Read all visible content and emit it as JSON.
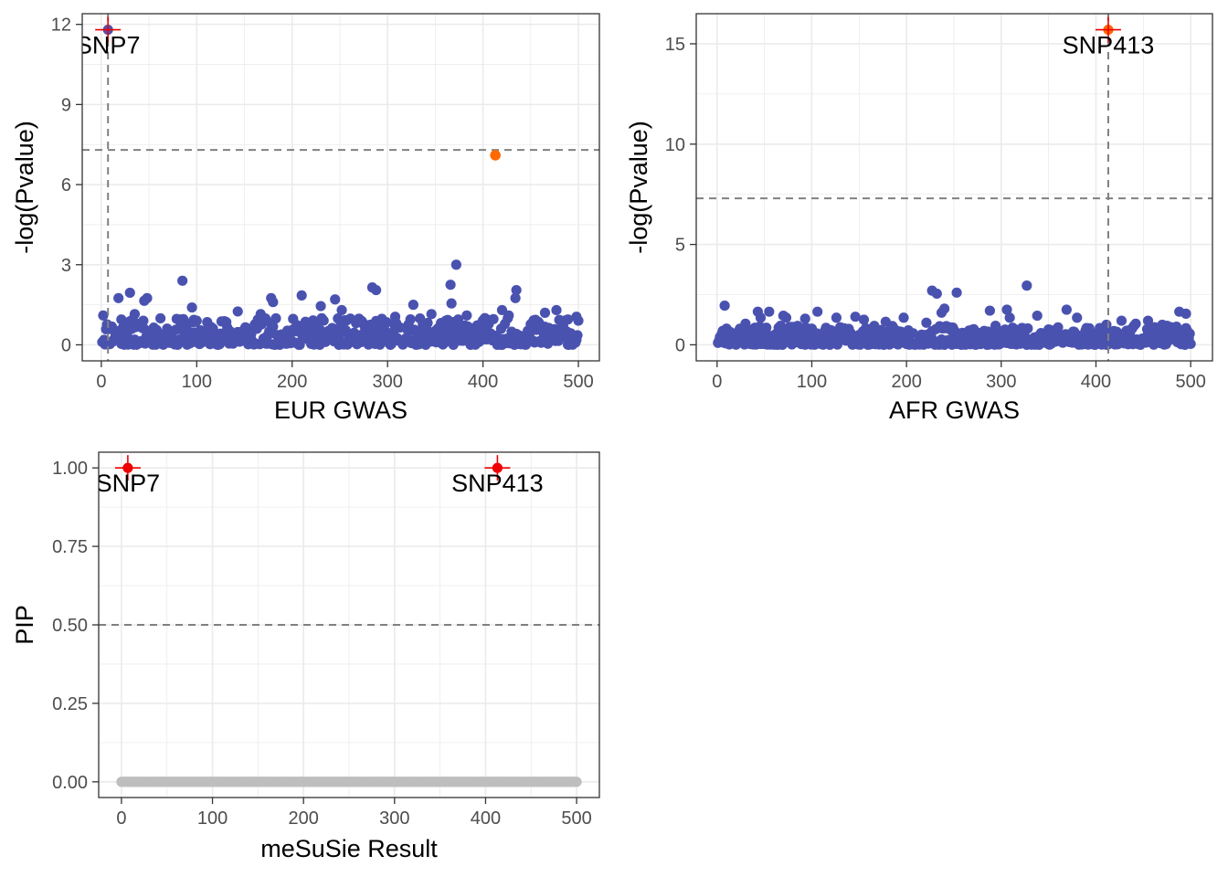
{
  "colors": {
    "point": "#4a52b0",
    "highlight": "#ff6a00",
    "cross": "#ee0000",
    "zero_pip": "#bebebe",
    "reference": "#808080",
    "grid": "#ebebeb"
  },
  "chart_data": [
    {
      "type": "scatter",
      "title": "",
      "xlabel": "EUR GWAS",
      "ylabel": "-log(Pvalue)",
      "xlim": [
        -20,
        522
      ],
      "ylim": [
        -0.6,
        12.4
      ],
      "x_ticks": [
        0,
        100,
        200,
        300,
        400,
        500
      ],
      "x_tick_labels": [
        "0",
        "100",
        "200",
        "300",
        "400",
        "500"
      ],
      "y_ticks": [
        0,
        3,
        6,
        9,
        12
      ],
      "y_tick_labels": [
        "0",
        "3",
        "6",
        "9",
        "12"
      ],
      "hline": 7.3,
      "vline": 7,
      "grid": true,
      "notable_points": [
        {
          "x": 7,
          "y": 11.8,
          "label": "SNP7",
          "marker": "cross",
          "color": "point"
        },
        {
          "x": 413,
          "y": 7.1,
          "label": "",
          "marker": "dot",
          "color": "highlight"
        }
      ],
      "outliers": [
        {
          "x": 2,
          "y": 1.1
        },
        {
          "x": 18,
          "y": 1.75
        },
        {
          "x": 21,
          "y": 0.95
        },
        {
          "x": 30,
          "y": 1.95
        },
        {
          "x": 35,
          "y": 1.15
        },
        {
          "x": 45,
          "y": 1.65
        },
        {
          "x": 48,
          "y": 1.75
        },
        {
          "x": 83,
          "y": 0.95
        },
        {
          "x": 85,
          "y": 2.4
        },
        {
          "x": 95,
          "y": 1.4
        },
        {
          "x": 100,
          "y": 0.9
        },
        {
          "x": 143,
          "y": 1.25
        },
        {
          "x": 167,
          "y": 1.15
        },
        {
          "x": 178,
          "y": 1.75
        },
        {
          "x": 180,
          "y": 1.6
        },
        {
          "x": 210,
          "y": 1.85
        },
        {
          "x": 230,
          "y": 1.45
        },
        {
          "x": 245,
          "y": 1.7
        },
        {
          "x": 252,
          "y": 1.3
        },
        {
          "x": 284,
          "y": 2.15
        },
        {
          "x": 288,
          "y": 2.05
        },
        {
          "x": 308,
          "y": 1.05
        },
        {
          "x": 327,
          "y": 1.5
        },
        {
          "x": 346,
          "y": 1.15
        },
        {
          "x": 366,
          "y": 2.25
        },
        {
          "x": 367,
          "y": 1.55
        },
        {
          "x": 372,
          "y": 3.0
        },
        {
          "x": 383,
          "y": 1.1
        },
        {
          "x": 402,
          "y": 1.0
        },
        {
          "x": 420,
          "y": 1.3
        },
        {
          "x": 427,
          "y": 1.1
        },
        {
          "x": 434,
          "y": 1.75
        },
        {
          "x": 435,
          "y": 2.05
        },
        {
          "x": 455,
          "y": 0.9
        },
        {
          "x": 465,
          "y": 1.2
        },
        {
          "x": 477,
          "y": 1.3
        },
        {
          "x": 489,
          "y": 0.95
        },
        {
          "x": 498,
          "y": 1.05
        }
      ],
      "background_points": {
        "x_range": [
          1,
          500
        ],
        "count": 500,
        "y_max": 1.0,
        "seed": 11
      }
    },
    {
      "type": "scatter",
      "title": "",
      "xlabel": "AFR GWAS",
      "ylabel": "-log(Pvalue)",
      "xlim": [
        -22,
        523
      ],
      "ylim": [
        -0.8,
        16.5
      ],
      "x_ticks": [
        0,
        100,
        200,
        300,
        400,
        500
      ],
      "x_tick_labels": [
        "0",
        "100",
        "200",
        "300",
        "400",
        "500"
      ],
      "y_ticks": [
        0,
        5,
        10,
        15
      ],
      "y_tick_labels": [
        "0",
        "5",
        "10",
        "15"
      ],
      "hline": 7.3,
      "vline": 413,
      "grid": true,
      "notable_points": [
        {
          "x": 413,
          "y": 15.7,
          "label": "SNP413",
          "marker": "cross",
          "color": "highlight"
        }
      ],
      "outliers": [
        {
          "x": 8,
          "y": 1.95
        },
        {
          "x": 30,
          "y": 1.05
        },
        {
          "x": 43,
          "y": 1.65
        },
        {
          "x": 46,
          "y": 1.35
        },
        {
          "x": 55,
          "y": 1.65
        },
        {
          "x": 70,
          "y": 1.45
        },
        {
          "x": 73,
          "y": 1.35
        },
        {
          "x": 93,
          "y": 1.3
        },
        {
          "x": 106,
          "y": 1.65
        },
        {
          "x": 126,
          "y": 1.35
        },
        {
          "x": 146,
          "y": 1.4
        },
        {
          "x": 155,
          "y": 1.25
        },
        {
          "x": 178,
          "y": 1.15
        },
        {
          "x": 197,
          "y": 1.35
        },
        {
          "x": 221,
          "y": 1.1
        },
        {
          "x": 227,
          "y": 2.7
        },
        {
          "x": 232,
          "y": 2.55
        },
        {
          "x": 237,
          "y": 1.6
        },
        {
          "x": 240,
          "y": 1.8
        },
        {
          "x": 253,
          "y": 2.6
        },
        {
          "x": 288,
          "y": 1.7
        },
        {
          "x": 306,
          "y": 1.75
        },
        {
          "x": 309,
          "y": 1.35
        },
        {
          "x": 327,
          "y": 2.95
        },
        {
          "x": 338,
          "y": 1.45
        },
        {
          "x": 369,
          "y": 1.75
        },
        {
          "x": 380,
          "y": 1.35
        },
        {
          "x": 411,
          "y": 1.0
        },
        {
          "x": 427,
          "y": 1.2
        },
        {
          "x": 442,
          "y": 1.05
        },
        {
          "x": 455,
          "y": 1.2
        },
        {
          "x": 470,
          "y": 1.0
        },
        {
          "x": 488,
          "y": 1.65
        },
        {
          "x": 495,
          "y": 1.55
        }
      ],
      "background_points": {
        "x_range": [
          1,
          500
        ],
        "count": 500,
        "y_max": 0.95,
        "seed": 23
      }
    },
    {
      "type": "scatter",
      "title": "",
      "xlabel": "meSuSie Result",
      "ylabel": "PIP",
      "xlim": [
        -25,
        525
      ],
      "ylim": [
        -0.05,
        1.05
      ],
      "x_ticks": [
        0,
        100,
        200,
        300,
        400,
        500
      ],
      "x_tick_labels": [
        "0",
        "100",
        "200",
        "300",
        "400",
        "500"
      ],
      "y_ticks": [
        0,
        0.25,
        0.5,
        0.75,
        1
      ],
      "y_tick_labels": [
        "0.00",
        "0.25",
        "0.50",
        "0.75",
        "1.00"
      ],
      "hline": 0.5,
      "grid": true,
      "notable_points": [
        {
          "x": 7,
          "y": 1.0,
          "label": "SNP7",
          "marker": "cross",
          "color": "cross"
        },
        {
          "x": 413,
          "y": 1.0,
          "label": "SNP413",
          "marker": "cross",
          "color": "cross"
        }
      ],
      "zero_points": {
        "x_range": [
          0,
          500
        ],
        "y": 0
      }
    }
  ]
}
